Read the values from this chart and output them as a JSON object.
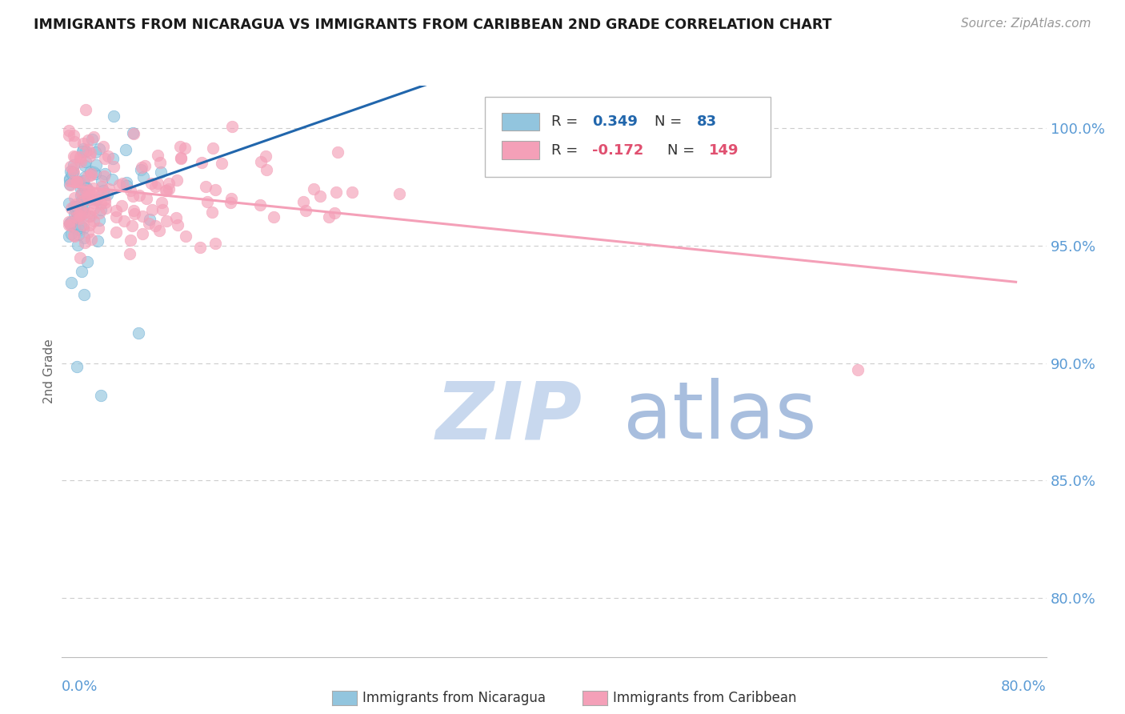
{
  "title": "IMMIGRANTS FROM NICARAGUA VS IMMIGRANTS FROM CARIBBEAN 2ND GRADE CORRELATION CHART",
  "source_text": "Source: ZipAtlas.com",
  "ylabel": "2nd Grade",
  "ytick_labels": [
    "80.0%",
    "85.0%",
    "90.0%",
    "95.0%",
    "100.0%"
  ],
  "ytick_values": [
    0.8,
    0.85,
    0.9,
    0.95,
    1.0
  ],
  "ylim": [
    0.775,
    1.018
  ],
  "xlim": [
    -0.005,
    0.805
  ],
  "watermark_zip": "ZIP",
  "watermark_atlas": "atlas",
  "r_blue": 0.349,
  "n_blue": 83,
  "r_pink": -0.172,
  "n_pink": 149,
  "blue_color": "#92c5de",
  "pink_color": "#f4a0b8",
  "blue_edge": "#6aaed6",
  "pink_edge": "#f4a0b8",
  "blue_line_color": "#2166ac",
  "pink_line_color": "#f4a0b8",
  "background_color": "#ffffff",
  "grid_color": "#cccccc",
  "title_color": "#1a1a1a",
  "axis_label_color": "#5b9bd5",
  "watermark_zip_color": "#c8d8ee",
  "watermark_atlas_color": "#a8bede",
  "seed_blue": 7,
  "seed_pink": 13,
  "legend_r_color": "#2166ac",
  "legend_r_pink_color": "#e05070"
}
